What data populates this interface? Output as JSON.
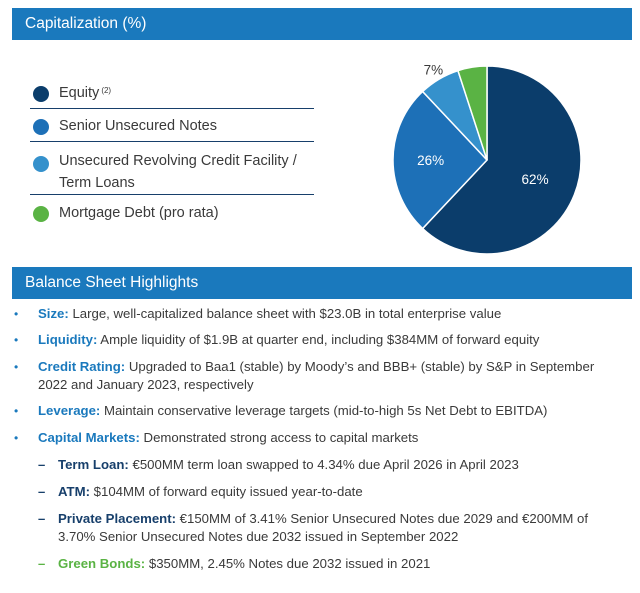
{
  "capitalization": {
    "header": "Capitalization (%)",
    "legend": [
      {
        "label": "Equity",
        "sup": "(2)",
        "color": "#0b3d6b",
        "dot_icon": "circle-icon"
      },
      {
        "label": "Senior Unsecured Notes",
        "sup": "",
        "color": "#1d70b7",
        "dot_icon": "circle-icon"
      },
      {
        "label_line1": "Unsecured Revolving Credit Facility /",
        "label_line2": "Term Loans",
        "color": "#3591cc",
        "dot_icon": "circle-icon"
      },
      {
        "label": "Mortgage Debt (pro rata)",
        "sup": "",
        "color": "#5ab344",
        "dot_icon": "circle-icon"
      }
    ]
  },
  "chart_data": {
    "type": "pie",
    "title": "Capitalization (%)",
    "slices": [
      {
        "label": "Equity",
        "value": 62,
        "display": "62%",
        "color": "#0b3d6b"
      },
      {
        "label": "Senior Unsecured Notes",
        "value": 26,
        "display": "26%",
        "color": "#1d70b7"
      },
      {
        "label": "Unsecured Revolving Credit Facility / Term Loans",
        "value": 7,
        "display": "7%",
        "color": "#3591cc"
      },
      {
        "label": "Mortgage Debt (pro rata)",
        "value": 5,
        "display": "5%",
        "color": "#5ab344"
      }
    ],
    "legend": "left"
  },
  "balance_sheet": {
    "header": "Balance Sheet Highlights",
    "items": [
      {
        "key": "Size:",
        "text": " Large, well-capitalized balance sheet with $23.0B in total enterprise value"
      },
      {
        "key": "Liquidity:",
        "text": " Ample liquidity of $1.9B at quarter end, including $384MM of forward equity"
      },
      {
        "key": "Credit Rating:",
        "text": " Upgraded to Baa1 (stable) by Moody’s and BBB+ (stable) by S&P in September",
        "text2": "2022 and January 2023, respectively"
      },
      {
        "key": "Leverage:",
        "text": " Maintain conservative leverage targets (mid-to-high 5s Net Debt to EBITDA)"
      },
      {
        "key": "Capital Markets:",
        "text": " Demonstrated strong access to capital markets"
      }
    ],
    "sub_items": [
      {
        "key": "Term Loan:",
        "text": " €500MM term loan swapped to 4.34% due April 2026 in April 2023"
      },
      {
        "key": "ATM:",
        "text": " $104MM of forward equity issued year-to-date"
      },
      {
        "key": "Private Placement:",
        "text": " €150MM of 3.41% Senior Unsecured Notes due 2029 and €200MM of",
        "text2": "3.70% Senior Unsecured Notes due 2032 issued in September 2022"
      },
      {
        "key": "Green Bonds:",
        "text": " $350MM, 2.45% Notes due 2032 issued in 2021"
      }
    ],
    "bullet_char": "•",
    "dash_char": "–",
    "accent_color": "#1a79bd",
    "dark_color": "#173f6b",
    "green_color": "#5ab344"
  }
}
